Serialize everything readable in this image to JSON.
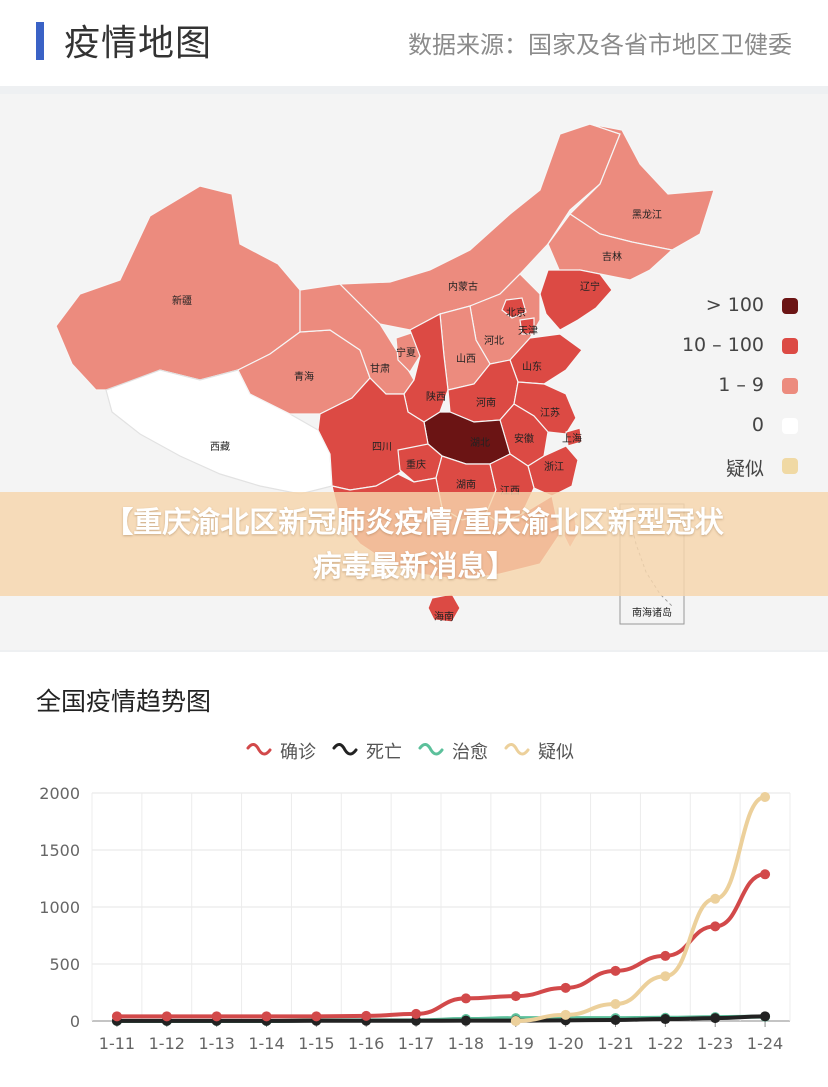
{
  "header": {
    "title": "疫情地图",
    "source": "数据来源：国家及各省市地区卫健委"
  },
  "map": {
    "provinces": {
      "xinjiang": "新疆",
      "xizang": "西藏",
      "qinghai": "青海",
      "gansu": "甘肃",
      "neimenggu": "内蒙古",
      "heilongjiang": "黑龙江",
      "jilin": "吉林",
      "liaoning": "辽宁",
      "beijing": "北京",
      "tianjin": "天津",
      "hebei": "河北",
      "shanxi": "山西",
      "ningxia": "宁夏",
      "shaanxi": "陕西",
      "shandong": "山东",
      "henan": "河南",
      "jiangsu": "江苏",
      "shanghai": "上海",
      "anhui": "安徽",
      "hubei": "湖北",
      "sichuan": "四川",
      "chongqing": "重庆",
      "zhejiang": "浙江",
      "hunan": "湖南",
      "jiangxi": "江西",
      "hainan": "海南",
      "nanhai": "南海诸岛"
    },
    "legend": [
      {
        "label": "> 100",
        "color": "#6b1414"
      },
      {
        "label": "10 – 100",
        "color": "#dc4a44"
      },
      {
        "label": "1 – 9",
        "color": "#ec8b7e"
      },
      {
        "label": "0",
        "color": "#ffffff"
      },
      {
        "label": "疑似",
        "color": "#f0d9a4"
      }
    ],
    "colors": {
      "over100": "#6b1414",
      "ten_to_100": "#dc4a44",
      "one_to_9": "#ec8b7e",
      "zero": "#ffffff",
      "suspect": "#f0d9a4"
    }
  },
  "banner": {
    "line1": "【重庆渝北区新冠肺炎疫情/重庆渝北区新型冠状",
    "line2": "病毒最新消息】"
  },
  "trend": {
    "title": "全国疫情趋势图",
    "legend": [
      {
        "label": "确诊",
        "color": "#d2494a"
      },
      {
        "label": "死亡",
        "color": "#222222"
      },
      {
        "label": "治愈",
        "color": "#5cc09b"
      },
      {
        "label": "疑似",
        "color": "#ecd09b"
      }
    ]
  },
  "chart_data": {
    "type": "line",
    "title": "全国疫情趋势图",
    "xlabel": "",
    "ylabel": "",
    "categories": [
      "1-11",
      "1-12",
      "1-13",
      "1-14",
      "1-15",
      "1-16",
      "1-17",
      "1-18",
      "1-19",
      "1-20",
      "1-21",
      "1-22",
      "1-23",
      "1-24"
    ],
    "ylim": [
      0,
      2000
    ],
    "yticks": [
      0,
      500,
      1000,
      1500,
      2000
    ],
    "grid": true,
    "legend_position": "top",
    "series": [
      {
        "name": "确诊",
        "color": "#d2494a",
        "values": [
          41,
          41,
          41,
          41,
          41,
          45,
          62,
          198,
          218,
          291,
          440,
          571,
          830,
          1287
        ]
      },
      {
        "name": "死亡",
        "color": "#222222",
        "values": [
          1,
          1,
          1,
          1,
          2,
          2,
          2,
          3,
          3,
          6,
          9,
          17,
          25,
          41
        ]
      },
      {
        "name": "治愈",
        "color": "#5cc09b",
        "values": [
          0,
          0,
          0,
          0,
          5,
          5,
          5,
          17,
          25,
          25,
          25,
          28,
          34,
          38
        ]
      },
      {
        "name": "疑似",
        "color": "#ecd09b",
        "start_index": 8,
        "values": [
          null,
          null,
          null,
          null,
          null,
          null,
          null,
          null,
          0,
          54,
          149,
          393,
          1072,
          1965
        ]
      }
    ]
  }
}
